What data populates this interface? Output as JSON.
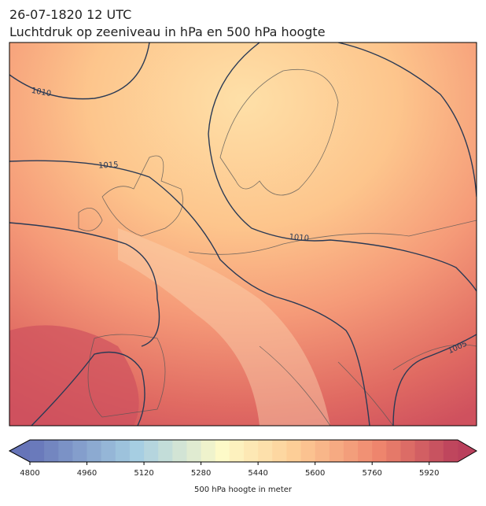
{
  "header": {
    "title_line1": "26-07-1820 12 UTC",
    "title_line2": "Luchtdruk op zeeniveau in hPa en 500 hPa hoogte"
  },
  "map": {
    "isobar_labels": [
      "1010",
      "1015",
      "1010",
      "1005"
    ]
  },
  "colorbar": {
    "label": "500 hPa hoogte in meter",
    "lim": [
      4800,
      6000
    ],
    "ticks": [
      4800,
      4960,
      5120,
      5280,
      5440,
      5600,
      5760,
      5920
    ]
  }
}
